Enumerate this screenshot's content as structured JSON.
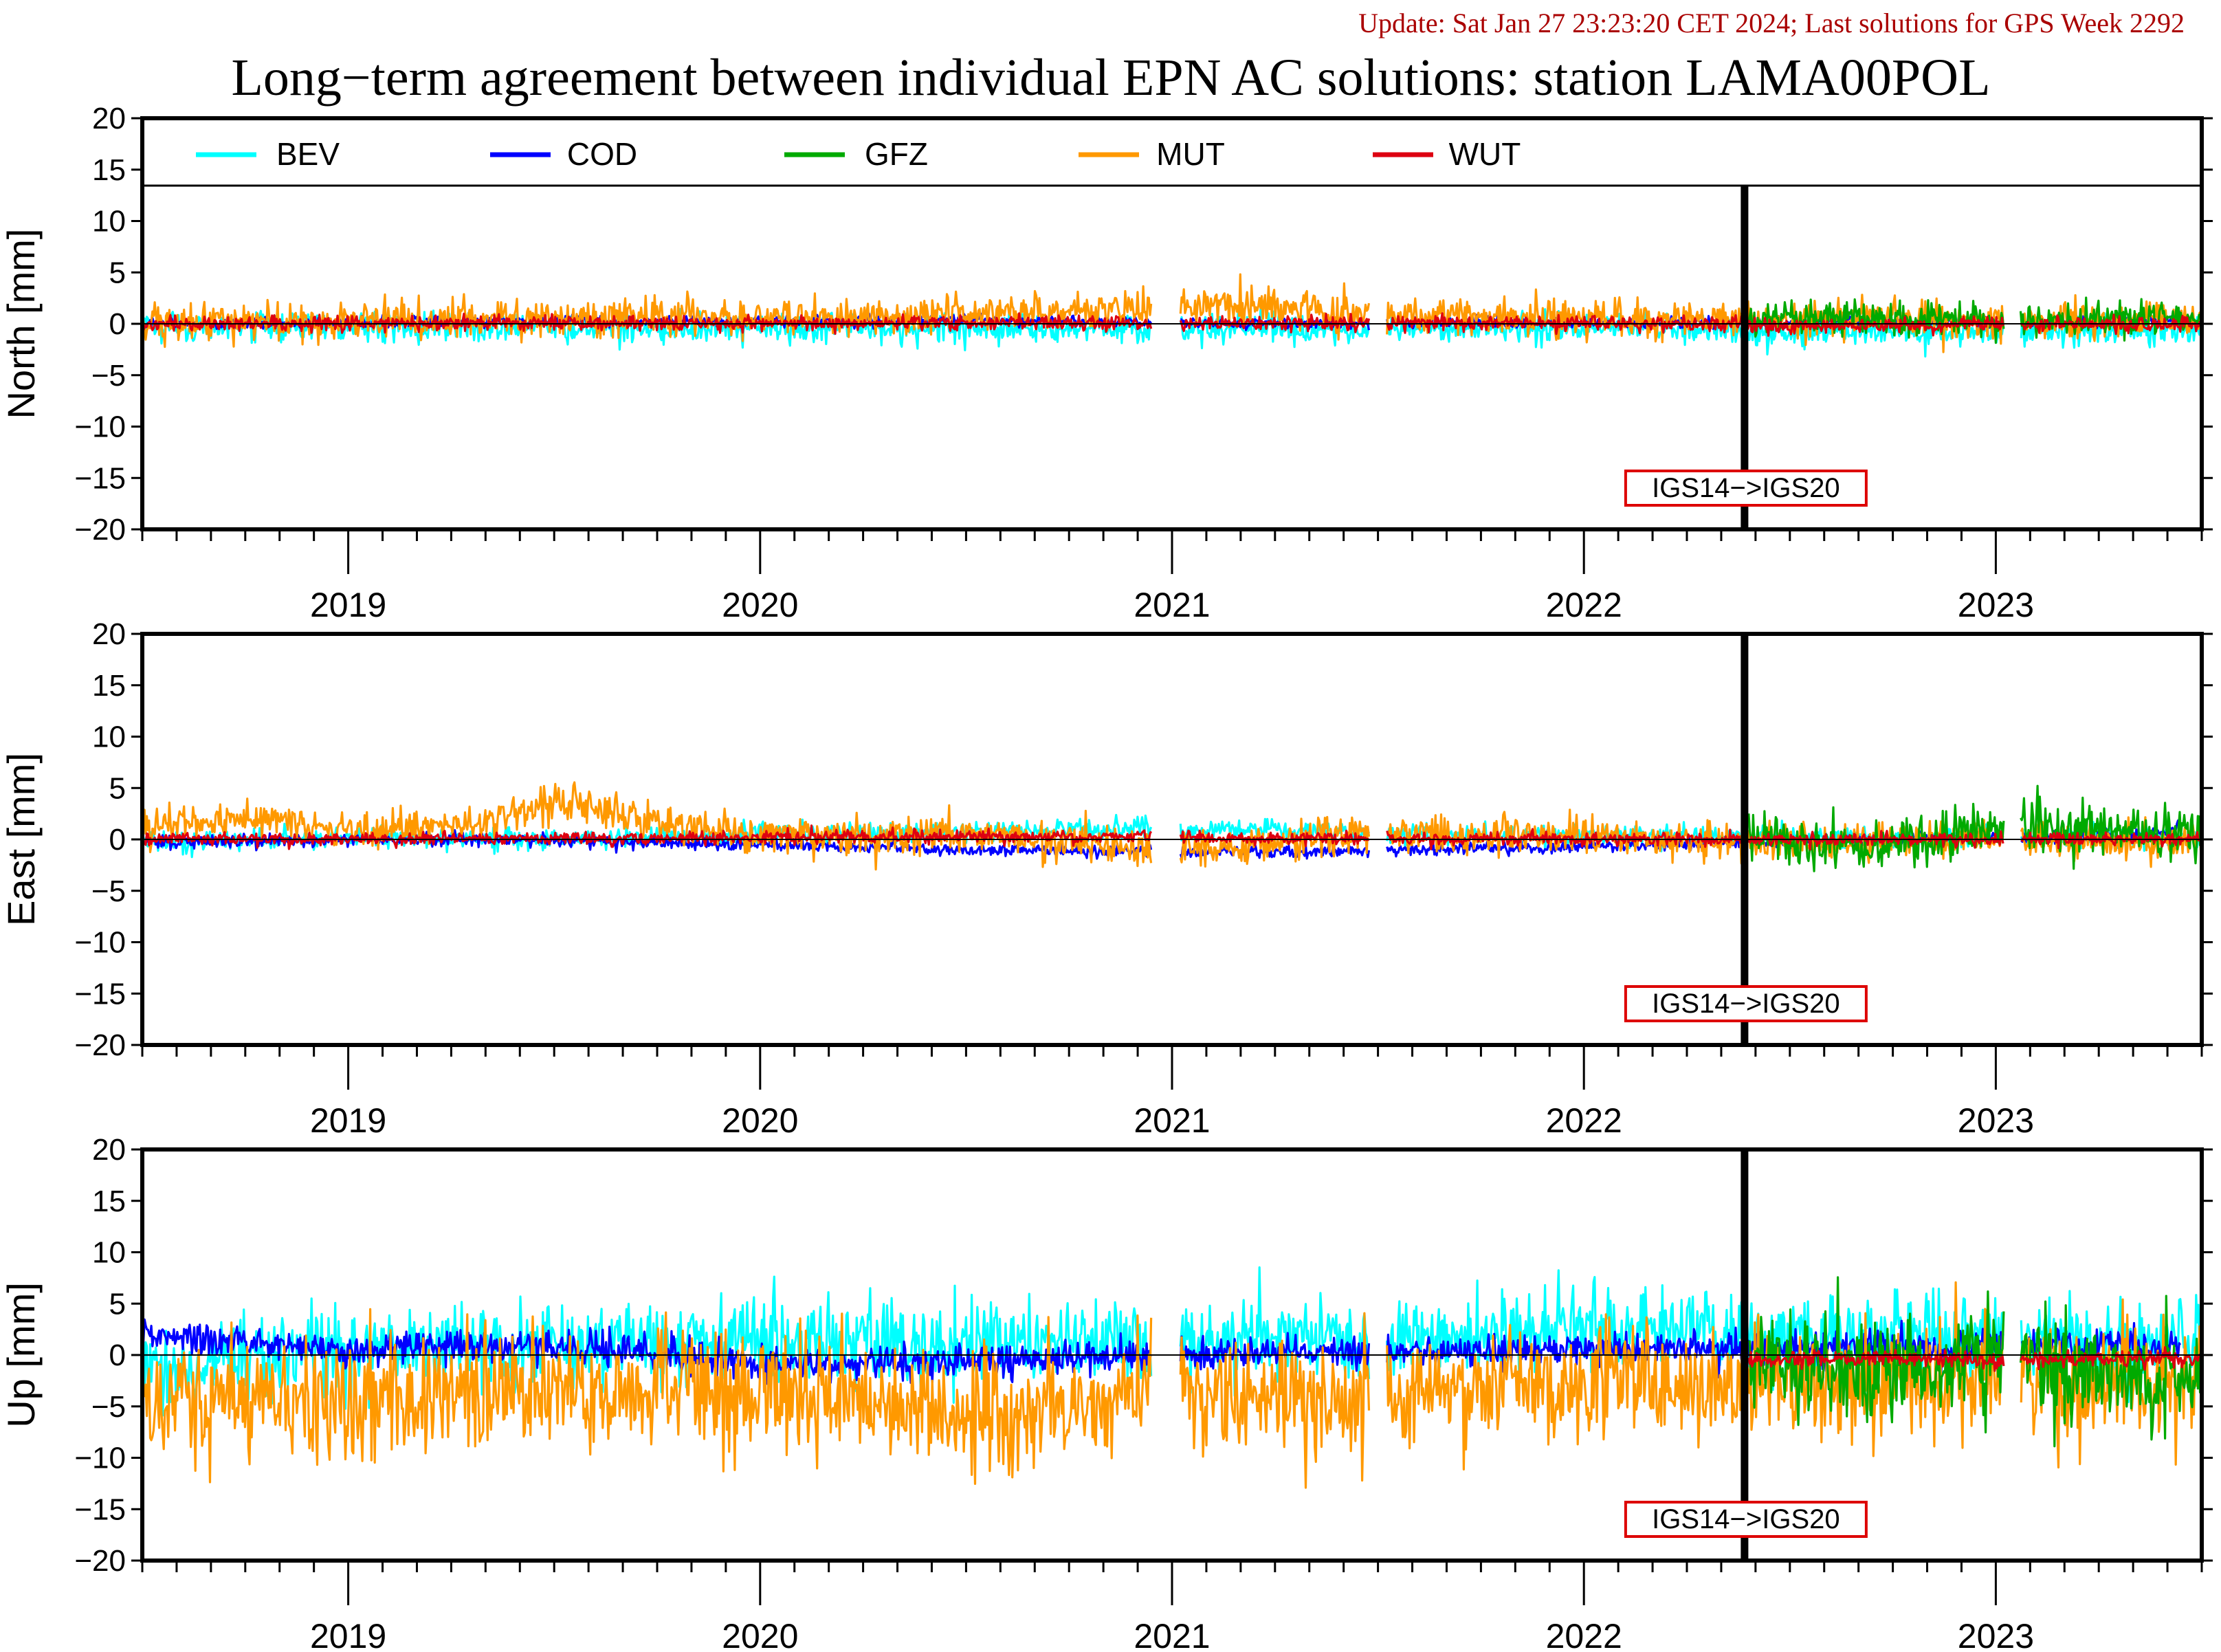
{
  "update_text": "Update: Sat Jan 27 23:23:20 CET 2024; Last solutions for GPS Week 2292",
  "title": "Long−term agreement between individual EPN AC solutions: station LAMA00POL",
  "colors": {
    "BEV": "#00ffff",
    "COD": "#0000ff",
    "GFZ": "#00aa00",
    "MUT": "#ff9900",
    "WUT": "#dd0011",
    "update_text": "#aa0000",
    "annotation_box": "#dd0000"
  },
  "legend": [
    {
      "name": "BEV",
      "color": "#00ffff"
    },
    {
      "name": "COD",
      "color": "#0000ff"
    },
    {
      "name": "GFZ",
      "color": "#00aa00"
    },
    {
      "name": "MUT",
      "color": "#ff9900"
    },
    {
      "name": "WUT",
      "color": "#dd0011"
    }
  ],
  "annotation": "IGS14−>IGS20",
  "chart_data": [
    {
      "type": "line",
      "panel": "north",
      "ylabel": "North [mm]",
      "ylim": [
        -20,
        20
      ],
      "yticks": [
        "20",
        "15",
        "10",
        "5",
        "0",
        "−5",
        "−10",
        "−15",
        "−20"
      ],
      "xlim": [
        2018.5,
        2023.5
      ],
      "xtick_labels": [
        "2019",
        "2020",
        "2021",
        "2022",
        "2023"
      ],
      "frame_change_at": 2022.39,
      "series": [
        {
          "name": "BEV",
          "x": [
            2018.5,
            2019.0,
            2019.5,
            2020.0,
            2020.5,
            2021.0,
            2021.5,
            2022.0,
            2022.5,
            2023.0,
            2023.5
          ],
          "y": [
            -0.3,
            -0.2,
            -0.3,
            -0.5,
            -0.4,
            -0.6,
            -0.5,
            -0.3,
            -0.8,
            -0.7,
            -0.5
          ]
        },
        {
          "name": "COD",
          "x": [
            2018.5,
            2019.0,
            2019.5,
            2020.0,
            2020.5,
            2021.0,
            2021.2,
            2023.3,
            2023.45
          ],
          "y": [
            0.0,
            0.1,
            0.3,
            0.2,
            0.4,
            0.1,
            0.0,
            0.2,
            0.3
          ]
        },
        {
          "name": "GFZ",
          "x": [
            2022.4,
            2022.7,
            2023.0,
            2023.2,
            2023.5
          ],
          "y": [
            0.5,
            0.6,
            0.4,
            0.5,
            0.4
          ]
        },
        {
          "name": "MUT",
          "x": [
            2018.5,
            2019.0,
            2019.5,
            2020.0,
            2020.5,
            2020.9,
            2021.1,
            2021.5,
            2022.0,
            2022.5,
            2023.0,
            2023.5
          ],
          "y": [
            0.0,
            0.3,
            0.8,
            0.6,
            1.0,
            1.5,
            2.0,
            0.8,
            0.5,
            0.4,
            0.3,
            0.5
          ]
        },
        {
          "name": "WUT",
          "x": [
            2018.5,
            2019.0,
            2019.5,
            2020.0,
            2020.5,
            2021.0,
            2021.5,
            2022.0,
            2022.5,
            2023.0,
            2023.5
          ],
          "y": [
            0.0,
            0.0,
            0.1,
            0.0,
            0.1,
            0.0,
            0.0,
            0.1,
            -0.2,
            -0.1,
            -0.1
          ]
        }
      ]
    },
    {
      "type": "line",
      "panel": "east",
      "ylabel": "East [mm]",
      "ylim": [
        -20,
        20
      ],
      "yticks": [
        "20",
        "15",
        "10",
        "5",
        "0",
        "−5",
        "−10",
        "−15",
        "−20"
      ],
      "xlim": [
        2018.5,
        2023.5
      ],
      "xtick_labels": [
        "2019",
        "2020",
        "2021",
        "2022",
        "2023"
      ],
      "frame_change_at": 2022.39,
      "series": [
        {
          "name": "BEV",
          "x": [
            2018.5,
            2019.0,
            2019.5,
            2020.0,
            2020.5,
            2021.0,
            2021.5,
            2022.0,
            2022.5,
            2023.0,
            2023.5
          ],
          "y": [
            -0.3,
            0.2,
            0.1,
            0.5,
            0.8,
            1.0,
            0.7,
            0.3,
            0.1,
            0.2,
            0.3
          ]
        },
        {
          "name": "COD",
          "x": [
            2018.5,
            2019.0,
            2019.5,
            2020.0,
            2020.5,
            2021.0,
            2021.2,
            2023.4,
            2023.45
          ],
          "y": [
            -0.2,
            -0.1,
            0.0,
            -0.5,
            -1.0,
            -1.2,
            -1.3,
            0.5,
            1.5
          ]
        },
        {
          "name": "GFZ",
          "x": [
            2022.4,
            2022.7,
            2023.0,
            2023.2,
            2023.5
          ],
          "y": [
            0.2,
            -1.0,
            1.5,
            1.2,
            0.2
          ]
        },
        {
          "name": "MUT",
          "x": [
            2018.5,
            2018.8,
            2019.0,
            2019.3,
            2019.5,
            2019.8,
            2020.0,
            2020.5,
            2021.0,
            2021.5,
            2022.0,
            2022.5,
            2023.0,
            2023.5
          ],
          "y": [
            1.5,
            2.0,
            1.0,
            1.5,
            3.5,
            1.5,
            0.3,
            0.5,
            -1.0,
            0.5,
            0.2,
            -0.3,
            0.0,
            -0.3
          ]
        },
        {
          "name": "WUT",
          "x": [
            2018.5,
            2019.0,
            2019.5,
            2020.0,
            2020.5,
            2021.0,
            2021.5,
            2022.0,
            2022.5,
            2023.0,
            2023.5
          ],
          "y": [
            0.0,
            0.0,
            0.1,
            0.2,
            0.3,
            0.2,
            0.1,
            0.0,
            0.0,
            0.0,
            0.0
          ]
        }
      ]
    },
    {
      "type": "line",
      "panel": "up",
      "ylabel": "Up [mm]",
      "ylim": [
        -20,
        20
      ],
      "yticks": [
        "20",
        "15",
        "10",
        "5",
        "0",
        "−5",
        "−10",
        "−15",
        "−20"
      ],
      "xlim": [
        2018.5,
        2023.5
      ],
      "xtick_labels": [
        "2019",
        "2020",
        "2021",
        "2022",
        "2023"
      ],
      "frame_change_at": 2022.39,
      "series": [
        {
          "name": "BEV",
          "x": [
            2018.5,
            2019.0,
            2019.5,
            2020.0,
            2020.5,
            2021.0,
            2021.5,
            2022.0,
            2022.5,
            2023.0,
            2023.5
          ],
          "y": [
            -1.5,
            0.5,
            0.5,
            1.5,
            1.0,
            2.0,
            1.0,
            3.0,
            1.0,
            2.0,
            1.0
          ]
        },
        {
          "name": "COD",
          "x": [
            2018.5,
            2018.8,
            2019.0,
            2019.5,
            2019.8,
            2020.0,
            2020.5,
            2021.0,
            2021.2,
            2023.35,
            2023.45
          ],
          "y": [
            2.0,
            1.0,
            0.5,
            1.0,
            0.0,
            -1.0,
            -0.5,
            0.0,
            0.2,
            1.0,
            0.5
          ]
        },
        {
          "name": "GFZ",
          "x": [
            2022.4,
            2022.7,
            2023.0,
            2023.2,
            2023.5
          ],
          "y": [
            0.0,
            -2.0,
            0.5,
            -1.5,
            -2.0
          ]
        },
        {
          "name": "MUT",
          "x": [
            2018.5,
            2019.0,
            2019.5,
            2020.0,
            2020.5,
            2021.0,
            2021.5,
            2022.0,
            2022.5,
            2023.0,
            2023.5
          ],
          "y": [
            -4.0,
            -4.5,
            -3.5,
            -3.0,
            -5.5,
            -3.5,
            -4.5,
            -2.5,
            -3.0,
            -2.0,
            -3.5
          ]
        },
        {
          "name": "WUT",
          "x": [
            2022.4,
            2022.7,
            2023.0,
            2023.5
          ],
          "y": [
            -0.5,
            -0.3,
            -0.5,
            -0.3
          ]
        }
      ]
    }
  ]
}
